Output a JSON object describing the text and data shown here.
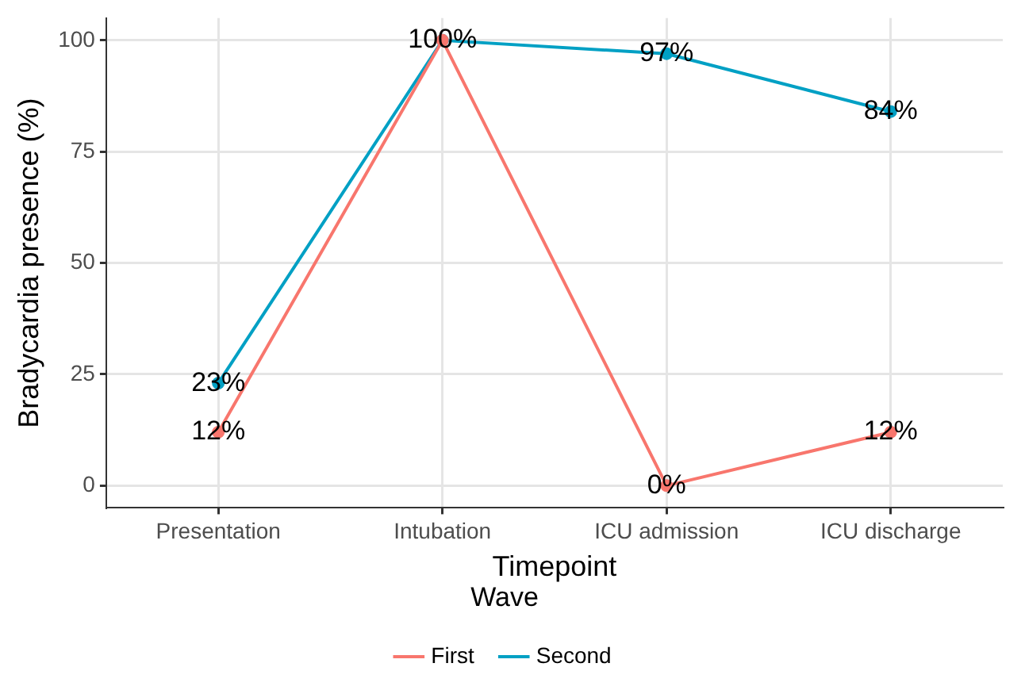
{
  "chart_data": {
    "type": "line",
    "xlabel": "Timepoint",
    "ylabel": "Bradycardia presence (%)",
    "legend_title": "Wave",
    "categories": [
      "Presentation",
      "Intubation",
      "ICU admission",
      "ICU discharge"
    ],
    "series": [
      {
        "name": "First",
        "color": "#f8766d",
        "values": [
          12,
          100,
          0,
          12
        ],
        "value_labels": [
          "12%",
          null,
          "0%",
          "12%"
        ]
      },
      {
        "name": "Second",
        "color": "#00a0c4",
        "values": [
          23,
          100,
          97,
          84
        ],
        "value_labels": [
          "23%",
          "100%",
          "97%",
          "84%"
        ]
      }
    ],
    "ylim": [
      -5,
      105
    ],
    "yticks": [
      0,
      25,
      50,
      75,
      100
    ],
    "grid": true,
    "legend": "bottom",
    "marker": "circle",
    "line_style": "solid"
  }
}
